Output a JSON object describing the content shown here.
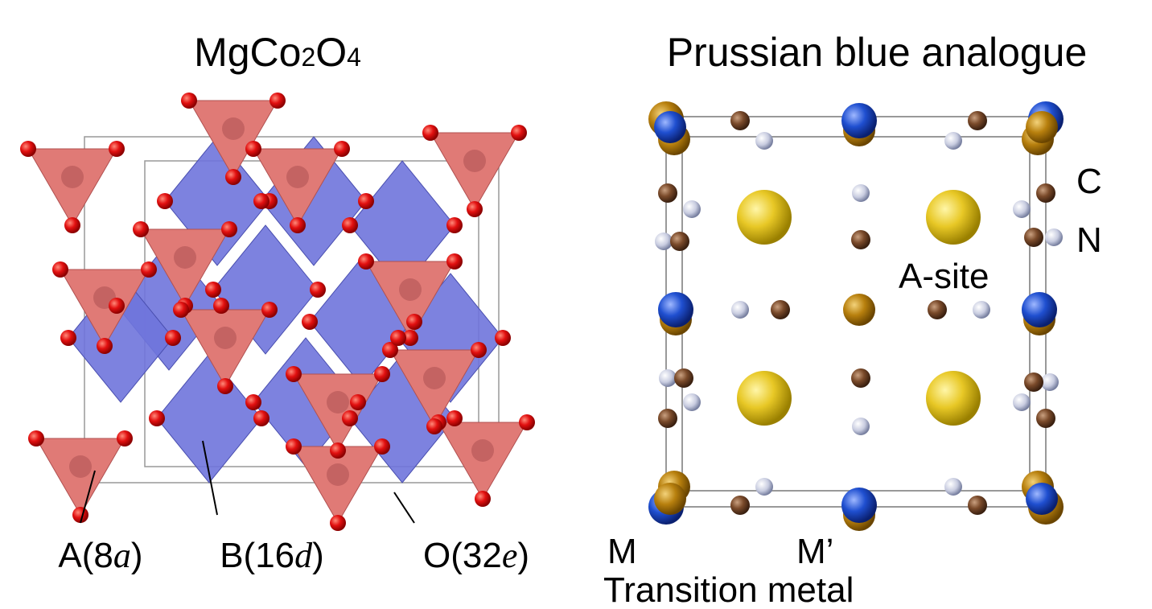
{
  "left_panel": {
    "title": {
      "parts": [
        "MgCo",
        "2",
        "O",
        "4"
      ]
    },
    "labels": [
      {
        "parts": [
          "A(8",
          "a",
          ")"
        ]
      },
      {
        "parts": [
          "B(16",
          "d",
          ")"
        ]
      },
      {
        "parts": [
          "O(32",
          "e",
          ")"
        ]
      }
    ]
  },
  "right_panel": {
    "title": "Prussian blue analogue",
    "labels": {
      "c": "C",
      "n": "N",
      "a_site": "A-site",
      "m": "M",
      "m_prime": "M’",
      "transition_metal": "Transition metal"
    }
  }
}
